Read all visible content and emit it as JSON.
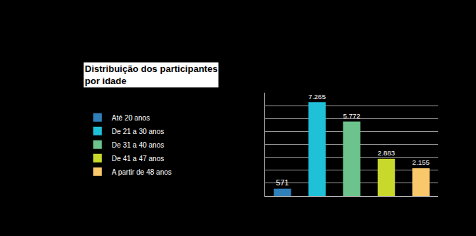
{
  "chart_data": {
    "type": "bar",
    "title": "Distribuição dos participantes\npor idade",
    "categories": [
      "Até 20 anos",
      "De 21 a 30 anos",
      "De 31 a 40 anos",
      "De 41 a 47 anos",
      "A partir de 48 anos"
    ],
    "values": [
      571,
      7265,
      5772,
      2883,
      2155
    ],
    "value_labels": [
      "571",
      "7.265",
      "5.772",
      "2.883",
      "2.155"
    ],
    "colors": [
      "#2f7fb9",
      "#1fc1d9",
      "#6cc48c",
      "#c9d92b",
      "#f8c86b"
    ],
    "ylim": [
      0,
      8000
    ],
    "yticks": [
      0,
      1000,
      2000,
      3000,
      4000,
      5000,
      6000,
      7000,
      8000
    ],
    "grid": true,
    "data_labels": true,
    "tick_labels": false,
    "legend": "left"
  }
}
